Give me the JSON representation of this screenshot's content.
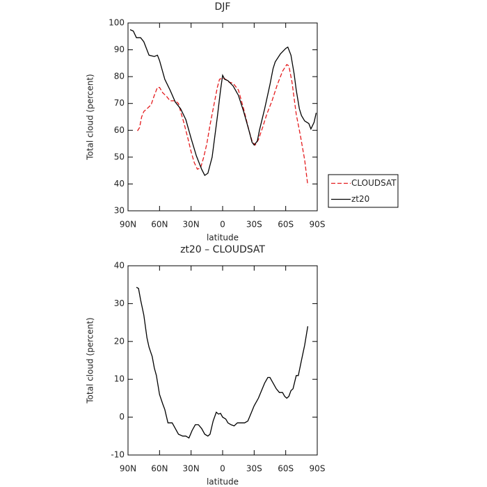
{
  "chart_data": [
    {
      "type": "line",
      "title": "DJF",
      "x_label": "latitude",
      "y_label": "Total cloud (percent)",
      "xlim": [
        90,
        -90
      ],
      "ylim": [
        30,
        100
      ],
      "xticks": [
        {
          "value": 90,
          "label": "90N"
        },
        {
          "value": 60,
          "label": "60N"
        },
        {
          "value": 30,
          "label": "30N"
        },
        0,
        {
          "value": -30,
          "label": "30S"
        },
        {
          "value": -60,
          "label": "60S"
        },
        {
          "value": -90,
          "label": "90S"
        }
      ],
      "yticks": [
        30,
        40,
        50,
        60,
        70,
        80,
        90,
        100
      ],
      "legend": "right",
      "series": [
        {
          "name": "CLOUDSAT",
          "color": "#e41a1c",
          "dash": true,
          "x": [
            81,
            79,
            77,
            75,
            72,
            68,
            65,
            62,
            60,
            57,
            53,
            50,
            45,
            42,
            40,
            37,
            33,
            30,
            27,
            24,
            21,
            18,
            15,
            12,
            8,
            5,
            3,
            0,
            -3,
            -6,
            -10,
            -15,
            -20,
            -25,
            -28,
            -31,
            -34,
            -38,
            -42,
            -47,
            -52,
            -57,
            -61,
            -63,
            -66,
            -70,
            -74,
            -78,
            -81
          ],
          "values": [
            59.8,
            61,
            65,
            67,
            68,
            69.5,
            73,
            76,
            76,
            74,
            72.5,
            71,
            71,
            70,
            67,
            63,
            57,
            52,
            48,
            45.5,
            46,
            50,
            55,
            62,
            70,
            76,
            79,
            79.5,
            79,
            78,
            77.5,
            75,
            68,
            60,
            56,
            54.5,
            56.5,
            61,
            66,
            71,
            77,
            82,
            84.5,
            84,
            78,
            66,
            58,
            49,
            39.5
          ]
        },
        {
          "name": "zt20",
          "color": "#000000",
          "dash": false,
          "x": [
            88,
            85,
            82,
            78,
            75,
            70,
            65,
            62,
            60,
            55,
            50,
            45,
            40,
            35,
            30,
            25,
            20,
            17,
            14,
            10,
            5,
            2,
            0,
            -2,
            -5,
            -10,
            -15,
            -20,
            -25,
            -28,
            -30,
            -33,
            -35,
            -40,
            -45,
            -48,
            -50,
            -55,
            -60,
            -62,
            -65,
            -68,
            -70,
            -73,
            -75,
            -78,
            -80,
            -82,
            -84,
            -87,
            -89
          ],
          "values": [
            97.5,
            97,
            94.5,
            94.5,
            93,
            88,
            87.5,
            88,
            86,
            79,
            75,
            70.5,
            68,
            64,
            57,
            50.5,
            45.5,
            43.2,
            44,
            50,
            65,
            75,
            80.5,
            79,
            78.5,
            76.5,
            73,
            67,
            60,
            55.5,
            54.5,
            56,
            60,
            68,
            77,
            83,
            85.5,
            88.5,
            90.5,
            91,
            88,
            81,
            75,
            68,
            65.5,
            63.5,
            63,
            62.5,
            60.5,
            63,
            66.5
          ]
        }
      ]
    },
    {
      "type": "line",
      "title": "zt20 – CLOUDSAT",
      "x_label": "latitude",
      "y_label": "Total cloud (percent)",
      "xlim": [
        90,
        -90
      ],
      "ylim": [
        -10,
        40
      ],
      "xticks": [
        {
          "value": 90,
          "label": "90N"
        },
        {
          "value": 60,
          "label": "60N"
        },
        {
          "value": 30,
          "label": "30N"
        },
        0,
        {
          "value": -30,
          "label": "30S"
        },
        {
          "value": -60,
          "label": "60S"
        },
        {
          "value": -90,
          "label": "90S"
        }
      ],
      "yticks": [
        -10,
        0,
        10,
        20,
        30,
        40
      ],
      "color": "#000000",
      "x": [
        82,
        80,
        78,
        75,
        72,
        70,
        67,
        65,
        63,
        60,
        57,
        55,
        52,
        48,
        45,
        42,
        38,
        35,
        32,
        29,
        26,
        23,
        20,
        17,
        14,
        12,
        9,
        6,
        4,
        2,
        0,
        -3,
        -5,
        -8,
        -11,
        -14,
        -18,
        -21,
        -24,
        -27,
        -30,
        -34,
        -37,
        -40,
        -43,
        -45,
        -48,
        -51,
        -54,
        -57,
        -59,
        -61,
        -63,
        -65,
        -67,
        -70,
        -72,
        -75,
        -78,
        -81
      ],
      "values": [
        34.3,
        34,
        31,
        27,
        21,
        18.5,
        16,
        13,
        11,
        6,
        3.5,
        2,
        -1.5,
        -1.5,
        -3,
        -4.5,
        -5,
        -5,
        -5.5,
        -3.5,
        -2,
        -2,
        -3,
        -4.5,
        -5,
        -4.5,
        -1,
        1.3,
        0.8,
        1,
        0,
        -0.5,
        -1.5,
        -2,
        -2.3,
        -1.5,
        -1.5,
        -1.5,
        -1,
        1,
        3,
        5,
        7,
        9,
        10.5,
        10.5,
        9,
        7.5,
        6.5,
        6.5,
        5.5,
        5,
        5.5,
        7,
        7.5,
        11,
        11,
        15,
        19,
        24
      ]
    }
  ]
}
